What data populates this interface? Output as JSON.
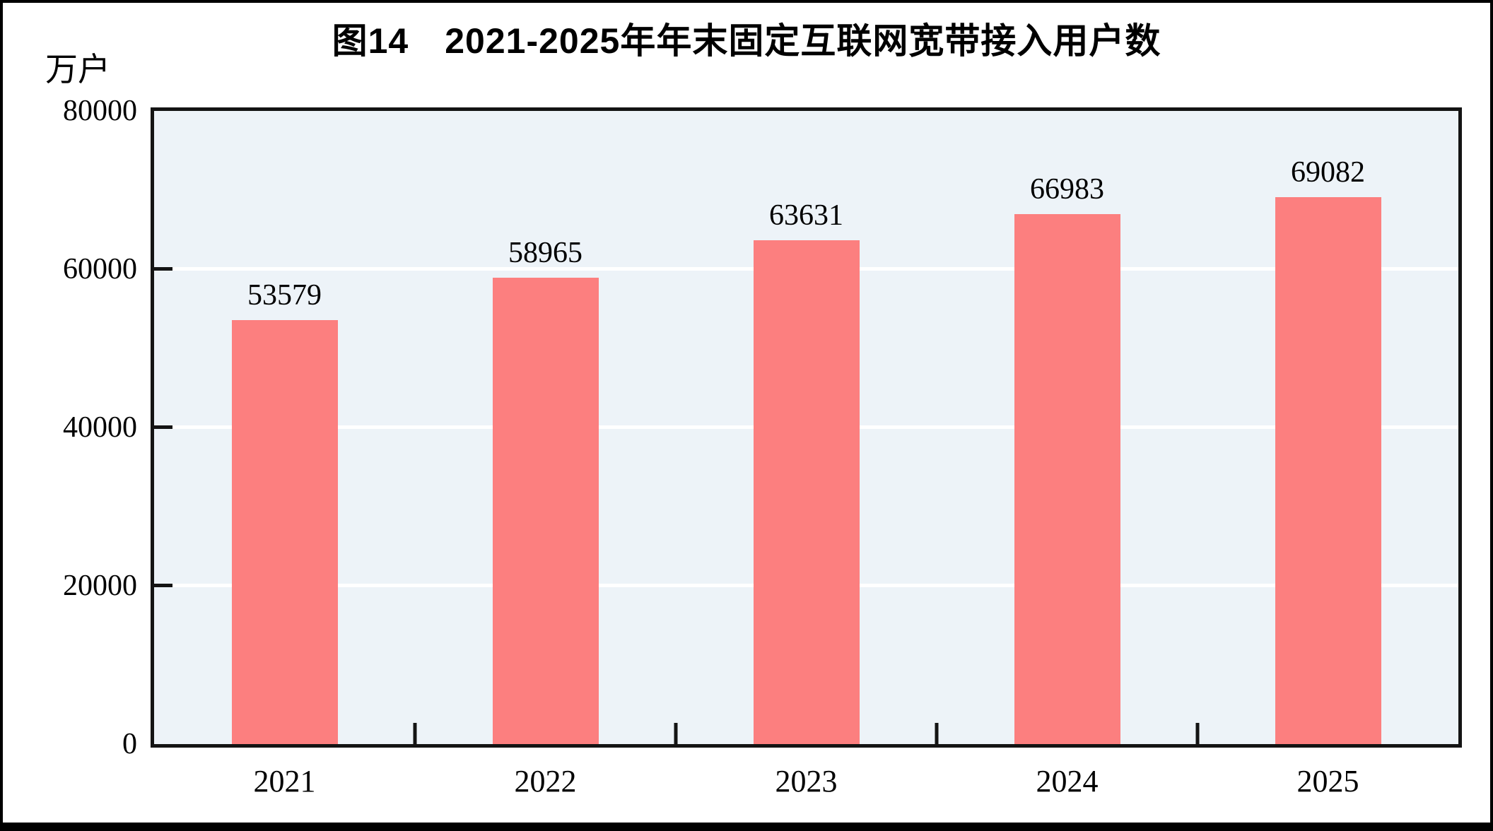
{
  "chart_data": {
    "type": "bar",
    "title": "图14　2021-2025年年末固定互联网宽带接入用户数",
    "unit_label": "万户",
    "categories": [
      "2021",
      "2022",
      "2023",
      "2024",
      "2025"
    ],
    "values": [
      53579,
      58965,
      63631,
      66983,
      69082
    ],
    "data_labels": [
      "53579",
      "58965",
      "63631",
      "66983",
      "69082"
    ],
    "ylim": [
      0,
      80000
    ],
    "yticks": [
      0,
      20000,
      40000,
      60000,
      80000
    ],
    "ytick_labels": [
      "0",
      "20000",
      "40000",
      "60000",
      "80000"
    ],
    "grid": "horizontal",
    "legend_position": "none",
    "bar_color": "#fc7f7f",
    "plot_bg_color": "#edf3f8",
    "gridline_color": "#ffffff",
    "axis_color": "#141414",
    "text_color": "#000000"
  }
}
